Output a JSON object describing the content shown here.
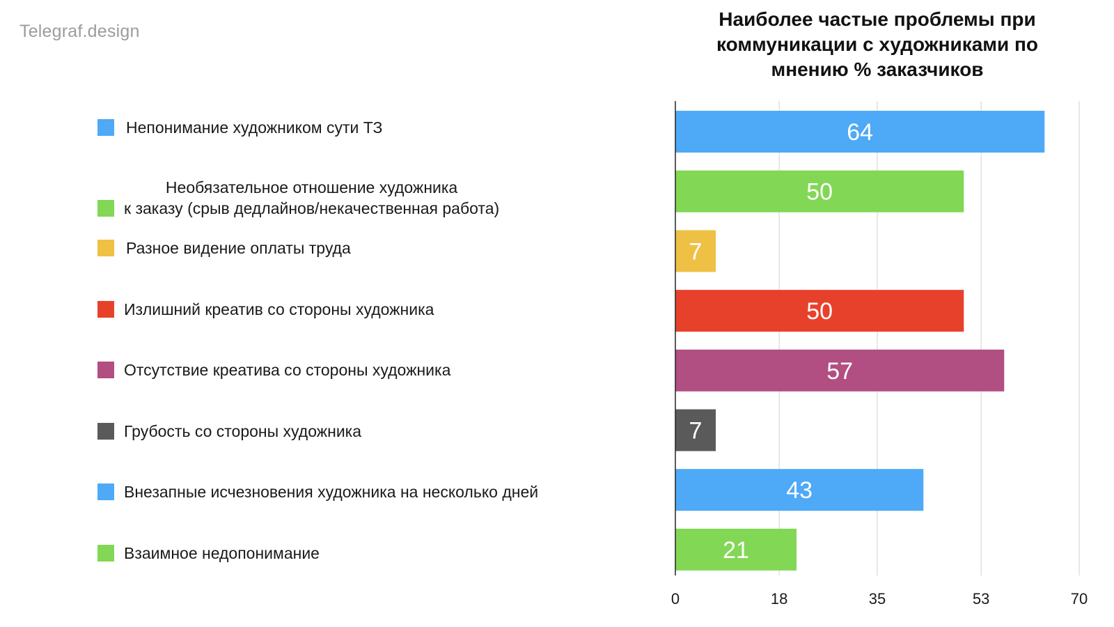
{
  "watermark": "Telegraf.design",
  "title_lines": [
    "Наиболее частые проблемы при",
    "коммуникации с художниками по",
    "мнению % заказчиков"
  ],
  "chart_data": {
    "type": "bar",
    "orientation": "horizontal",
    "title": "Наиболее частые проблемы при коммуникации с художниками по мнению % заказчиков",
    "categories": [
      "Непонимание художником сути ТЗ",
      "Необязательное отношение художника\nк заказу (срыв дедлайнов/некачественная работа)",
      "Разное видение оплаты труда",
      "Излишний креатив со стороны художника",
      "Отсутствие креатива со стороны художника",
      "Грубость со стороны художника",
      "Внезапные исчезновения художника на несколько дней",
      "Взаимное недопонимание"
    ],
    "values": [
      64,
      50,
      7,
      50,
      57,
      7,
      43,
      21
    ],
    "colors": [
      "#4ea9f6",
      "#82d755",
      "#eec044",
      "#e8412b",
      "#b14e82",
      "#5a5a5a",
      "#4ea9f6",
      "#82d755"
    ],
    "xlim": [
      0,
      70
    ],
    "xticks": [
      "0",
      "18",
      "35",
      "53",
      "70"
    ],
    "grid": true,
    "legend_position": "left",
    "data_labels": true
  }
}
